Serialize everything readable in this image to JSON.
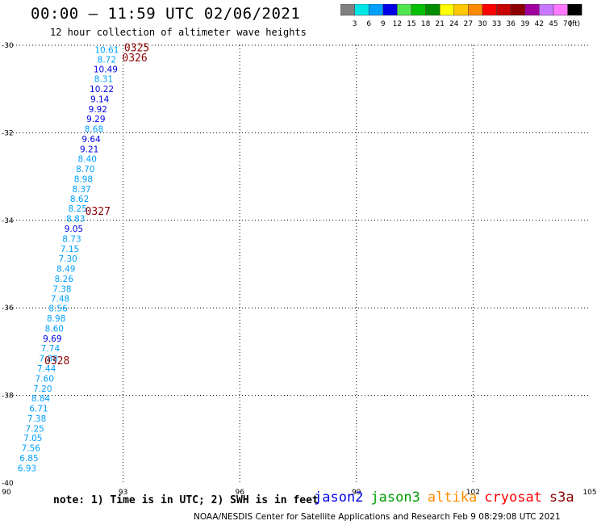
{
  "header": {
    "title": "00:00 – 11:59 UTC 02/06/2021",
    "subtitle": "12 hour collection of altimeter wave heights"
  },
  "legend": {
    "colors": [
      "#808080",
      "#00e6e6",
      "#00a0ff",
      "#0000e6",
      "#50e650",
      "#00c000",
      "#008c00",
      "#ffff00",
      "#ffc800",
      "#ff8c00",
      "#ff0000",
      "#c80000",
      "#8c0000",
      "#a000a0",
      "#c878ff",
      "#ff78ff",
      "#000000"
    ],
    "labels": [
      "3",
      "6",
      "9",
      "12",
      "15",
      "18",
      "21",
      "24",
      "27",
      "30",
      "33",
      "36",
      "39",
      "42",
      "45",
      "70"
    ],
    "unit": "(ft)"
  },
  "footer": {
    "note": "note: 1) Time is in UTC; 2) SWH is in feet",
    "satellites": [
      {
        "name": "jason2",
        "color": "#0000e6"
      },
      {
        "name": "jason3",
        "color": "#00a000"
      },
      {
        "name": "altika",
        "color": "#ff8c00"
      },
      {
        "name": "cryosat",
        "color": "#ff0000"
      },
      {
        "name": "s3a",
        "color": "#8c0000"
      }
    ],
    "credit": "NOAA/NESDIS Center for Satellite Applications and Research   Feb  9 08:29:08 UTC 2021"
  },
  "chart_data": {
    "type": "scatter",
    "title": "00:00 – 11:59 UTC 02/06/2021",
    "subtitle": "12 hour collection of altimeter wave heights",
    "xlabel": "",
    "ylabel": "",
    "xlim": [
      90,
      105
    ],
    "ylim": [
      -40,
      -30
    ],
    "xticks": [
      90,
      93,
      96,
      99,
      102,
      105
    ],
    "yticks": [
      -30,
      -32,
      -34,
      -36,
      -38,
      -40
    ],
    "grid": true,
    "label_colors": {
      "light": "#00a0ff",
      "dark": "#0000e6",
      "time": "#8c0000"
    },
    "points": [
      {
        "x": 92.58,
        "y": -30.1,
        "v": "10.61",
        "c": "light"
      },
      {
        "x": 92.58,
        "y": -30.32,
        "v": "8.72",
        "c": "light"
      },
      {
        "x": 92.55,
        "y": -30.54,
        "v": "10.49",
        "c": "dark"
      },
      {
        "x": 92.5,
        "y": -30.77,
        "v": "8.31",
        "c": "light"
      },
      {
        "x": 92.45,
        "y": -31.0,
        "v": "10.22",
        "c": "dark"
      },
      {
        "x": 92.4,
        "y": -31.23,
        "v": "9.14",
        "c": "dark"
      },
      {
        "x": 92.35,
        "y": -31.46,
        "v": "9.92",
        "c": "dark"
      },
      {
        "x": 92.3,
        "y": -31.68,
        "v": "9.29",
        "c": "dark"
      },
      {
        "x": 92.25,
        "y": -31.91,
        "v": "8.68",
        "c": "light"
      },
      {
        "x": 92.18,
        "y": -32.14,
        "v": "9.64",
        "c": "dark"
      },
      {
        "x": 92.13,
        "y": -32.37,
        "v": "9.21",
        "c": "dark"
      },
      {
        "x": 92.08,
        "y": -32.59,
        "v": "8.40",
        "c": "light"
      },
      {
        "x": 92.03,
        "y": -32.82,
        "v": "8.70",
        "c": "light"
      },
      {
        "x": 91.98,
        "y": -33.05,
        "v": "8.98",
        "c": "light"
      },
      {
        "x": 91.93,
        "y": -33.28,
        "v": "8.37",
        "c": "light"
      },
      {
        "x": 91.88,
        "y": -33.51,
        "v": "8.62",
        "c": "light"
      },
      {
        "x": 91.83,
        "y": -33.73,
        "v": "8.25",
        "c": "light"
      },
      {
        "x": 91.78,
        "y": -33.96,
        "v": "8.83",
        "c": "light"
      },
      {
        "x": 91.73,
        "y": -34.19,
        "v": "9.05",
        "c": "dark"
      },
      {
        "x": 91.68,
        "y": -34.42,
        "v": "8.73",
        "c": "light"
      },
      {
        "x": 91.63,
        "y": -34.65,
        "v": "7.15",
        "c": "light"
      },
      {
        "x": 91.58,
        "y": -34.87,
        "v": "7.30",
        "c": "light"
      },
      {
        "x": 91.53,
        "y": -35.1,
        "v": "8.49",
        "c": "light"
      },
      {
        "x": 91.48,
        "y": -35.33,
        "v": "8.26",
        "c": "light"
      },
      {
        "x": 91.43,
        "y": -35.56,
        "v": "7.38",
        "c": "light"
      },
      {
        "x": 91.38,
        "y": -35.78,
        "v": "7.48",
        "c": "light"
      },
      {
        "x": 91.33,
        "y": -36.01,
        "v": "8.56",
        "c": "light"
      },
      {
        "x": 91.28,
        "y": -36.24,
        "v": "8.98",
        "c": "light"
      },
      {
        "x": 91.23,
        "y": -36.47,
        "v": "8.60",
        "c": "light"
      },
      {
        "x": 91.18,
        "y": -36.7,
        "v": "9.69",
        "c": "dark"
      },
      {
        "x": 91.13,
        "y": -36.92,
        "v": "7.74",
        "c": "light"
      },
      {
        "x": 91.08,
        "y": -37.15,
        "v": "7.88",
        "c": "light"
      },
      {
        "x": 91.03,
        "y": -37.38,
        "v": "7.44",
        "c": "light"
      },
      {
        "x": 90.98,
        "y": -37.61,
        "v": "7.60",
        "c": "light"
      },
      {
        "x": 90.93,
        "y": -37.84,
        "v": "7.20",
        "c": "light"
      },
      {
        "x": 90.88,
        "y": -38.06,
        "v": "8.84",
        "c": "light"
      },
      {
        "x": 90.83,
        "y": -38.29,
        "v": "6.71",
        "c": "light"
      },
      {
        "x": 90.78,
        "y": -38.52,
        "v": "7.38",
        "c": "light"
      },
      {
        "x": 90.73,
        "y": -38.75,
        "v": "7.25",
        "c": "light"
      },
      {
        "x": 90.68,
        "y": -38.97,
        "v": "7.05",
        "c": "light"
      },
      {
        "x": 90.63,
        "y": -39.2,
        "v": "7.56",
        "c": "light"
      },
      {
        "x": 90.58,
        "y": -39.43,
        "v": "6.85",
        "c": "light"
      },
      {
        "x": 90.53,
        "y": -39.66,
        "v": "6.93",
        "c": "light"
      }
    ],
    "time_labels": [
      {
        "x": 93.35,
        "y": -30.05,
        "v": "0325"
      },
      {
        "x": 93.3,
        "y": -30.28,
        "v": "0326"
      },
      {
        "x": 92.35,
        "y": -33.78,
        "v": "0327"
      },
      {
        "x": 91.3,
        "y": -37.2,
        "v": "0328"
      }
    ]
  }
}
